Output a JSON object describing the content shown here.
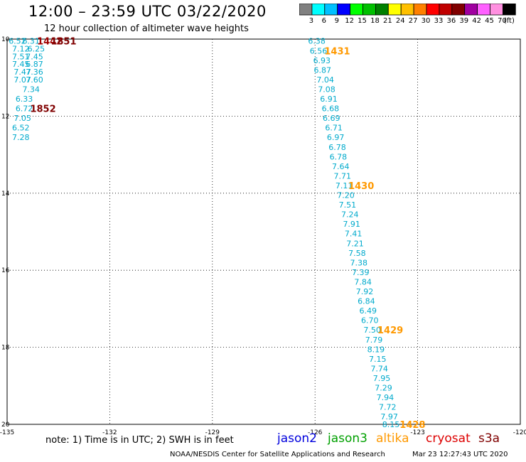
{
  "header": {
    "title": "12:00 – 23:59 UTC 03/22/2020",
    "subtitle": "12 hour collection of altimeter wave heights"
  },
  "colorbar": {
    "swatches": [
      "#808080",
      "#00ffff",
      "#00c0ff",
      "#0000ff",
      "#00ff00",
      "#00c000",
      "#008000",
      "#ffff00",
      "#ffc000",
      "#ff8000",
      "#ff0000",
      "#c00000",
      "#800000",
      "#a000a0",
      "#ff60ff",
      "#ff90e0",
      "#000000"
    ],
    "labels": [
      "3",
      "6",
      "9",
      "12",
      "15",
      "18",
      "21",
      "24",
      "27",
      "30",
      "33",
      "36",
      "39",
      "42",
      "45",
      "70",
      "(ft)"
    ]
  },
  "map": {
    "lon_ticks": [
      "-135",
      "-132",
      "-129",
      "-126",
      "-123",
      "-120"
    ],
    "lat_ticks": [
      "10",
      "12",
      "14",
      "16",
      "18",
      "20"
    ],
    "lon_range": [
      -135,
      -120
    ],
    "lat_range": [
      10,
      20
    ],
    "cross_track_color": "#00aacc",
    "west_track": [
      {
        "lon": -134.7,
        "lat": 10.05,
        "v": "6.52"
      },
      {
        "lon": -134.3,
        "lat": 10.05,
        "v": "6.31"
      },
      {
        "lon": -134.6,
        "lat": 10.25,
        "v": "7.12"
      },
      {
        "lon": -134.15,
        "lat": 10.25,
        "v": "6.25"
      },
      {
        "lon": -134.6,
        "lat": 10.45,
        "v": "7.51"
      },
      {
        "lon": -134.2,
        "lat": 10.45,
        "v": "7.45"
      },
      {
        "lon": -134.6,
        "lat": 10.65,
        "v": "7.45"
      },
      {
        "lon": -134.2,
        "lat": 10.65,
        "v": "6.87"
      },
      {
        "lon": -134.55,
        "lat": 10.85,
        "v": "7.47"
      },
      {
        "lon": -134.2,
        "lat": 10.85,
        "v": "7.36"
      },
      {
        "lon": -134.55,
        "lat": 11.05,
        "v": "7.07"
      },
      {
        "lon": -134.2,
        "lat": 11.05,
        "v": "7.60"
      },
      {
        "lon": -134.3,
        "lat": 11.3,
        "v": "7.34"
      },
      {
        "lon": -134.5,
        "lat": 11.55,
        "v": "6.33"
      },
      {
        "lon": -134.5,
        "lat": 11.8,
        "v": "6.72"
      },
      {
        "lon": -134.55,
        "lat": 12.05,
        "v": "7.05"
      },
      {
        "lon": -134.6,
        "lat": 12.3,
        "v": "6.52"
      },
      {
        "lon": -134.6,
        "lat": 12.55,
        "v": "7.28"
      }
    ],
    "east_track": [
      {
        "lon": -125.95,
        "lat": 10.05,
        "v": "6.38"
      },
      {
        "lon": -125.9,
        "lat": 10.3,
        "v": "6.56"
      },
      {
        "lon": -125.8,
        "lat": 10.55,
        "v": "6.93"
      },
      {
        "lon": -125.78,
        "lat": 10.8,
        "v": "6.87"
      },
      {
        "lon": -125.7,
        "lat": 11.05,
        "v": "7.04"
      },
      {
        "lon": -125.66,
        "lat": 11.3,
        "v": "7.08"
      },
      {
        "lon": -125.6,
        "lat": 11.55,
        "v": "6.91"
      },
      {
        "lon": -125.55,
        "lat": 11.8,
        "v": "6.68"
      },
      {
        "lon": -125.52,
        "lat": 12.05,
        "v": "6.69"
      },
      {
        "lon": -125.45,
        "lat": 12.3,
        "v": "6.71"
      },
      {
        "lon": -125.4,
        "lat": 12.55,
        "v": "6.97"
      },
      {
        "lon": -125.35,
        "lat": 12.8,
        "v": "6.78"
      },
      {
        "lon": -125.32,
        "lat": 13.05,
        "v": "6.78"
      },
      {
        "lon": -125.25,
        "lat": 13.3,
        "v": "7.64"
      },
      {
        "lon": -125.2,
        "lat": 13.55,
        "v": "7.71"
      },
      {
        "lon": -125.15,
        "lat": 13.8,
        "v": "7.11"
      },
      {
        "lon": -125.1,
        "lat": 14.05,
        "v": "7.20"
      },
      {
        "lon": -125.05,
        "lat": 14.3,
        "v": "7.51"
      },
      {
        "lon": -124.98,
        "lat": 14.55,
        "v": "7.24"
      },
      {
        "lon": -124.93,
        "lat": 14.8,
        "v": "7.91"
      },
      {
        "lon": -124.88,
        "lat": 15.05,
        "v": "7.41"
      },
      {
        "lon": -124.83,
        "lat": 15.3,
        "v": "7.21"
      },
      {
        "lon": -124.77,
        "lat": 15.55,
        "v": "7.58"
      },
      {
        "lon": -124.72,
        "lat": 15.8,
        "v": "7.38"
      },
      {
        "lon": -124.67,
        "lat": 16.05,
        "v": "7.39"
      },
      {
        "lon": -124.6,
        "lat": 16.3,
        "v": "7.84"
      },
      {
        "lon": -124.55,
        "lat": 16.55,
        "v": "7.92"
      },
      {
        "lon": -124.5,
        "lat": 16.8,
        "v": "6.84"
      },
      {
        "lon": -124.45,
        "lat": 17.05,
        "v": "6.49"
      },
      {
        "lon": -124.4,
        "lat": 17.3,
        "v": "6.70"
      },
      {
        "lon": -124.33,
        "lat": 17.55,
        "v": "7.50"
      },
      {
        "lon": -124.28,
        "lat": 17.8,
        "v": "7.79"
      },
      {
        "lon": -124.22,
        "lat": 18.05,
        "v": "8.19"
      },
      {
        "lon": -124.17,
        "lat": 18.3,
        "v": "7.15"
      },
      {
        "lon": -124.12,
        "lat": 18.55,
        "v": "7.74"
      },
      {
        "lon": -124.05,
        "lat": 18.8,
        "v": "7.95"
      },
      {
        "lon": -124.0,
        "lat": 19.05,
        "v": "7.29"
      },
      {
        "lon": -123.95,
        "lat": 19.3,
        "v": "7.94"
      },
      {
        "lon": -123.88,
        "lat": 19.55,
        "v": "7.72"
      },
      {
        "lon": -123.83,
        "lat": 19.8,
        "v": "7.97"
      },
      {
        "lon": -123.78,
        "lat": 20.0,
        "v": "8.15"
      }
    ],
    "time_labels": [
      {
        "lon": -133.75,
        "lat": 10.05,
        "text": "1442",
        "color": "#a00000"
      },
      {
        "lon": -133.35,
        "lat": 10.05,
        "text": "1851",
        "color": "#800000"
      },
      {
        "lon": -133.95,
        "lat": 11.8,
        "text": "1852",
        "color": "#800000"
      },
      {
        "lon": -125.35,
        "lat": 10.3,
        "text": "1431",
        "color": "#ff9900"
      },
      {
        "lon": -124.65,
        "lat": 13.8,
        "text": "1430",
        "color": "#ff9900"
      },
      {
        "lon": -123.8,
        "lat": 17.55,
        "text": "1429",
        "color": "#ff9900"
      },
      {
        "lon": -123.15,
        "lat": 20.0,
        "text": "1428",
        "color": "#ff9900"
      }
    ]
  },
  "note": "note:  1) Time is in UTC; 2) SWH is in feet",
  "legend": [
    {
      "label": "jason2",
      "color": "#0000dd"
    },
    {
      "label": "jason3",
      "color": "#00a000"
    },
    {
      "label": "altika",
      "color": "#ff9900"
    },
    {
      "label": "cryosat",
      "color": "#dd0000"
    },
    {
      "label": "s3a",
      "color": "#800000"
    }
  ],
  "footer": {
    "credit": "NOAA/NESDIS Center for Satellite Applications and Research",
    "stamp": "Mar 23 12:27:43 UTC 2020"
  }
}
